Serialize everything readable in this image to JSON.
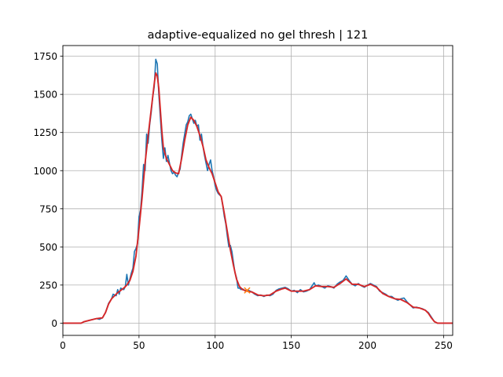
{
  "chart_data": {
    "type": "line",
    "title": "adaptive-equalized no gel thresh | 121",
    "xlabel": "",
    "ylabel": "",
    "xlim": [
      0,
      256
    ],
    "ylim": [
      -80,
      1820
    ],
    "grid": true,
    "x_ticks": [
      0,
      50,
      100,
      150,
      200,
      250
    ],
    "y_ticks": [
      0,
      250,
      500,
      750,
      1000,
      1250,
      1500,
      1750
    ],
    "x_tick_labels": [
      "0",
      "50",
      "100",
      "150",
      "200",
      "250"
    ],
    "y_tick_labels": [
      "0",
      "250",
      "500",
      "750",
      "1000",
      "1250",
      "1500",
      "1750"
    ],
    "colors": {
      "raw": "#1f77b4",
      "smoothed": "#d62728",
      "marker": "#ff7f0e",
      "grid": "#b0b0b0"
    },
    "series": [
      {
        "role": "raw",
        "points": [
          [
            0,
            0
          ],
          [
            12,
            0
          ],
          [
            14,
            10
          ],
          [
            18,
            20
          ],
          [
            22,
            30
          ],
          [
            24,
            25
          ],
          [
            26,
            35
          ],
          [
            28,
            70
          ],
          [
            30,
            130
          ],
          [
            32,
            160
          ],
          [
            33,
            190
          ],
          [
            35,
            180
          ],
          [
            36,
            220
          ],
          [
            37,
            190
          ],
          [
            38,
            230
          ],
          [
            40,
            220
          ],
          [
            41,
            240
          ],
          [
            42,
            320
          ],
          [
            43,
            250
          ],
          [
            45,
            330
          ],
          [
            46,
            360
          ],
          [
            47,
            470
          ],
          [
            48,
            490
          ],
          [
            49,
            520
          ],
          [
            50,
            700
          ],
          [
            51,
            740
          ],
          [
            52,
            870
          ],
          [
            53,
            1040
          ],
          [
            54,
            1000
          ],
          [
            55,
            1240
          ],
          [
            56,
            1180
          ],
          [
            57,
            1300
          ],
          [
            58,
            1380
          ],
          [
            59,
            1480
          ],
          [
            60,
            1550
          ],
          [
            61,
            1730
          ],
          [
            62,
            1700
          ],
          [
            63,
            1500
          ],
          [
            64,
            1350
          ],
          [
            65,
            1200
          ],
          [
            66,
            1080
          ],
          [
            67,
            1150
          ],
          [
            68,
            1060
          ],
          [
            69,
            1100
          ],
          [
            70,
            1050
          ],
          [
            71,
            1000
          ],
          [
            72,
            980
          ],
          [
            73,
            990
          ],
          [
            74,
            970
          ],
          [
            75,
            960
          ],
          [
            76,
            990
          ],
          [
            77,
            1010
          ],
          [
            78,
            1100
          ],
          [
            79,
            1180
          ],
          [
            80,
            1240
          ],
          [
            81,
            1300
          ],
          [
            82,
            1320
          ],
          [
            83,
            1360
          ],
          [
            84,
            1370
          ],
          [
            85,
            1340
          ],
          [
            86,
            1310
          ],
          [
            87,
            1330
          ],
          [
            88,
            1290
          ],
          [
            89,
            1300
          ],
          [
            90,
            1200
          ],
          [
            91,
            1240
          ],
          [
            92,
            1160
          ],
          [
            93,
            1100
          ],
          [
            94,
            1050
          ],
          [
            95,
            1000
          ],
          [
            96,
            1040
          ],
          [
            97,
            1070
          ],
          [
            98,
            1000
          ],
          [
            99,
            960
          ],
          [
            100,
            900
          ],
          [
            101,
            870
          ],
          [
            102,
            850
          ],
          [
            103,
            840
          ],
          [
            104,
            830
          ],
          [
            105,
            770
          ],
          [
            106,
            700
          ],
          [
            107,
            650
          ],
          [
            108,
            570
          ],
          [
            109,
            500
          ],
          [
            110,
            510
          ],
          [
            111,
            470
          ],
          [
            112,
            400
          ],
          [
            113,
            330
          ],
          [
            114,
            300
          ],
          [
            115,
            230
          ],
          [
            116,
            230
          ],
          [
            117,
            220
          ],
          [
            118,
            225
          ],
          [
            120,
            210
          ],
          [
            122,
            215
          ],
          [
            124,
            205
          ],
          [
            126,
            190
          ],
          [
            128,
            180
          ],
          [
            130,
            185
          ],
          [
            132,
            175
          ],
          [
            134,
            185
          ],
          [
            136,
            180
          ],
          [
            138,
            190
          ],
          [
            140,
            215
          ],
          [
            142,
            225
          ],
          [
            144,
            230
          ],
          [
            146,
            235
          ],
          [
            148,
            225
          ],
          [
            150,
            210
          ],
          [
            152,
            215
          ],
          [
            154,
            200
          ],
          [
            156,
            220
          ],
          [
            158,
            205
          ],
          [
            160,
            210
          ],
          [
            162,
            220
          ],
          [
            164,
            250
          ],
          [
            165,
            265
          ],
          [
            166,
            245
          ],
          [
            168,
            250
          ],
          [
            170,
            240
          ],
          [
            172,
            230
          ],
          [
            174,
            245
          ],
          [
            176,
            240
          ],
          [
            178,
            230
          ],
          [
            180,
            255
          ],
          [
            182,
            270
          ],
          [
            184,
            280
          ],
          [
            186,
            310
          ],
          [
            188,
            280
          ],
          [
            190,
            255
          ],
          [
            192,
            245
          ],
          [
            194,
            260
          ],
          [
            196,
            245
          ],
          [
            198,
            235
          ],
          [
            200,
            250
          ],
          [
            202,
            260
          ],
          [
            204,
            250
          ],
          [
            206,
            240
          ],
          [
            208,
            210
          ],
          [
            210,
            200
          ],
          [
            212,
            190
          ],
          [
            214,
            175
          ],
          [
            216,
            175
          ],
          [
            218,
            160
          ],
          [
            220,
            150
          ],
          [
            222,
            160
          ],
          [
            224,
            165
          ],
          [
            226,
            140
          ],
          [
            228,
            120
          ],
          [
            230,
            100
          ],
          [
            232,
            105
          ],
          [
            234,
            100
          ],
          [
            236,
            95
          ],
          [
            238,
            85
          ],
          [
            240,
            70
          ],
          [
            242,
            40
          ],
          [
            244,
            10
          ],
          [
            246,
            0
          ],
          [
            256,
            0
          ]
        ]
      },
      {
        "role": "smoothed",
        "points": [
          [
            0,
            0
          ],
          [
            12,
            0
          ],
          [
            14,
            10
          ],
          [
            18,
            20
          ],
          [
            22,
            30
          ],
          [
            26,
            35
          ],
          [
            28,
            70
          ],
          [
            30,
            125
          ],
          [
            32,
            160
          ],
          [
            34,
            180
          ],
          [
            36,
            200
          ],
          [
            38,
            215
          ],
          [
            40,
            230
          ],
          [
            42,
            250
          ],
          [
            44,
            280
          ],
          [
            46,
            340
          ],
          [
            48,
            440
          ],
          [
            50,
            620
          ],
          [
            52,
            820
          ],
          [
            54,
            1050
          ],
          [
            56,
            1230
          ],
          [
            58,
            1400
          ],
          [
            60,
            1570
          ],
          [
            61,
            1640
          ],
          [
            62,
            1620
          ],
          [
            63,
            1540
          ],
          [
            64,
            1400
          ],
          [
            65,
            1260
          ],
          [
            66,
            1150
          ],
          [
            68,
            1080
          ],
          [
            70,
            1040
          ],
          [
            72,
            1000
          ],
          [
            74,
            985
          ],
          [
            76,
            980
          ],
          [
            78,
            1080
          ],
          [
            80,
            1200
          ],
          [
            82,
            1300
          ],
          [
            84,
            1350
          ],
          [
            86,
            1330
          ],
          [
            88,
            1290
          ],
          [
            90,
            1230
          ],
          [
            92,
            1160
          ],
          [
            94,
            1070
          ],
          [
            96,
            1020
          ],
          [
            98,
            980
          ],
          [
            100,
            920
          ],
          [
            102,
            860
          ],
          [
            104,
            830
          ],
          [
            106,
            720
          ],
          [
            108,
            600
          ],
          [
            110,
            480
          ],
          [
            112,
            380
          ],
          [
            114,
            290
          ],
          [
            116,
            240
          ],
          [
            118,
            220
          ],
          [
            121,
            210
          ],
          [
            124,
            205
          ],
          [
            128,
            185
          ],
          [
            132,
            180
          ],
          [
            136,
            185
          ],
          [
            140,
            210
          ],
          [
            144,
            225
          ],
          [
            146,
            230
          ],
          [
            150,
            210
          ],
          [
            154,
            210
          ],
          [
            158,
            210
          ],
          [
            162,
            220
          ],
          [
            166,
            245
          ],
          [
            170,
            240
          ],
          [
            174,
            240
          ],
          [
            178,
            235
          ],
          [
            182,
            260
          ],
          [
            186,
            290
          ],
          [
            190,
            255
          ],
          [
            194,
            255
          ],
          [
            198,
            240
          ],
          [
            202,
            255
          ],
          [
            206,
            235
          ],
          [
            210,
            195
          ],
          [
            214,
            175
          ],
          [
            218,
            160
          ],
          [
            222,
            155
          ],
          [
            226,
            135
          ],
          [
            230,
            105
          ],
          [
            234,
            100
          ],
          [
            238,
            85
          ],
          [
            240,
            65
          ],
          [
            242,
            35
          ],
          [
            244,
            10
          ],
          [
            246,
            0
          ],
          [
            256,
            0
          ]
        ]
      }
    ],
    "marker": {
      "x": 121,
      "y": 215,
      "symbol": "x"
    }
  }
}
